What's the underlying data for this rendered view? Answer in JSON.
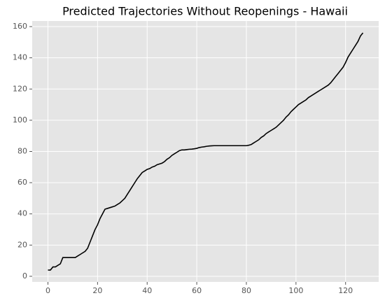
{
  "chart_data": {
    "type": "line",
    "title": "Predicted Trajectories Without Reopenings - Hawaii",
    "x": [
      0,
      1,
      2,
      3,
      4,
      5,
      6,
      7,
      8,
      9,
      10,
      11,
      12,
      13,
      14,
      15,
      16,
      17,
      18,
      19,
      20,
      21,
      22,
      23,
      24,
      25,
      26,
      27,
      28,
      29,
      30,
      31,
      32,
      33,
      34,
      35,
      36,
      37,
      38,
      39,
      40,
      41,
      42,
      43,
      44,
      45,
      46,
      47,
      48,
      49,
      50,
      51,
      52,
      53,
      54,
      55,
      56,
      57,
      58,
      59,
      60,
      61,
      62,
      63,
      64,
      65,
      66,
      67,
      68,
      69,
      70,
      71,
      72,
      73,
      74,
      75,
      76,
      77,
      78,
      79,
      80,
      81,
      82,
      83,
      84,
      85,
      86,
      87,
      88,
      89,
      90,
      91,
      92,
      93,
      94,
      95,
      96,
      97,
      98,
      99,
      100,
      101,
      102,
      103,
      104,
      105,
      106,
      107,
      108,
      109,
      110,
      111,
      112,
      113,
      114,
      115,
      116,
      117,
      118,
      119,
      120,
      121,
      122,
      123,
      124,
      125,
      126,
      127
    ],
    "values": [
      4,
      4,
      6,
      6,
      7,
      8,
      12,
      12,
      12,
      12,
      12,
      12,
      13,
      14,
      15,
      16,
      18,
      22,
      26,
      30,
      33,
      37,
      40,
      43,
      43.5,
      44,
      44.5,
      45,
      46,
      47,
      48.5,
      50,
      52.5,
      55,
      57.5,
      60,
      62.5,
      64.5,
      66.5,
      67.5,
      68.5,
      69,
      70,
      70.5,
      71.5,
      72,
      72.5,
      73.5,
      75,
      76,
      77.5,
      78.5,
      79.5,
      80.5,
      81,
      81,
      81.2,
      81.4,
      81.5,
      81.7,
      82,
      82.5,
      82.8,
      83,
      83.3,
      83.5,
      83.6,
      83.7,
      83.7,
      83.7,
      83.7,
      83.7,
      83.7,
      83.7,
      83.7,
      83.7,
      83.7,
      83.7,
      83.7,
      83.7,
      83.7,
      84,
      84.5,
      85.5,
      86.5,
      87.5,
      89,
      90,
      91.5,
      92.5,
      93.5,
      94.5,
      95.5,
      97,
      98.5,
      100,
      102,
      103.5,
      105.5,
      107,
      108.5,
      110,
      111,
      112,
      113,
      114.5,
      115.5,
      116.5,
      117.5,
      118.5,
      119.5,
      120.5,
      121.5,
      122.5,
      124,
      126,
      128,
      130,
      132,
      134,
      137,
      140.5,
      143,
      145.5,
      148,
      150.5,
      154,
      156
    ],
    "color": "#000000",
    "xlim": [
      -6.35,
      133.35
    ],
    "xticks": [
      0,
      20,
      40,
      60,
      80,
      100,
      120
    ],
    "ylim": [
      -3.6,
      163.6
    ],
    "yticks": [
      0,
      20,
      40,
      60,
      80,
      100,
      120,
      140,
      160
    ],
    "grid": true
  }
}
